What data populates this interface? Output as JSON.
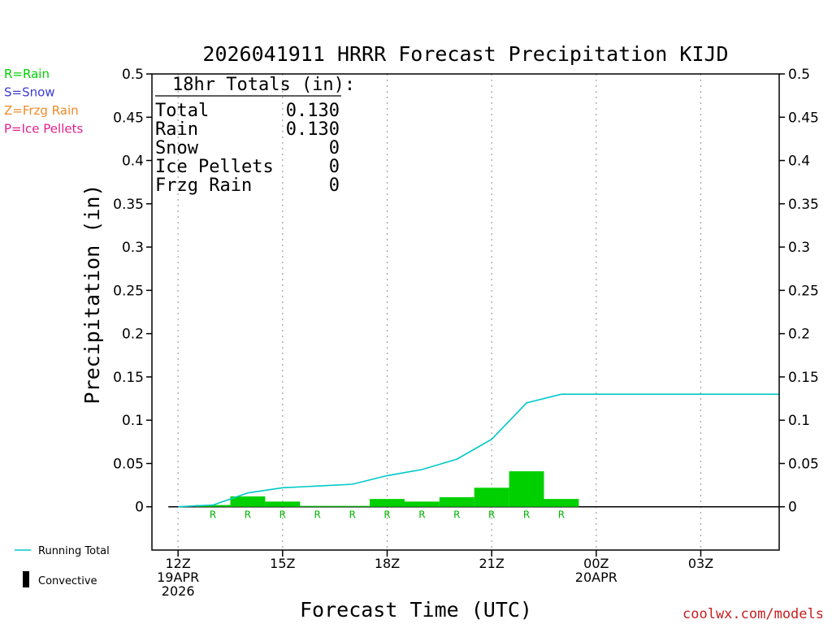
{
  "chart_data": {
    "type": "bar",
    "title": "2026041911 HRRR Forecast Precipitation KIJD",
    "xlabel": "Forecast Time (UTC)",
    "ylabel": "Precipitation (in)",
    "ylim": [
      -0.05,
      0.5
    ],
    "yticks": [
      0,
      0.05,
      0.1,
      0.15,
      0.2,
      0.25,
      0.3,
      0.35,
      0.4,
      0.45,
      0.5
    ],
    "ytick_labels": [
      "0",
      "0.05",
      "0.1",
      "0.15",
      "0.2",
      "0.25",
      "0.3",
      "0.35",
      "0.4",
      "0.45",
      "0.5"
    ],
    "xlim_hours": [
      11.25,
      29.25
    ],
    "xticks": [
      {
        "hour": 12,
        "lines": [
          "12Z",
          "19APR",
          "2026"
        ]
      },
      {
        "hour": 15,
        "lines": [
          "15Z"
        ]
      },
      {
        "hour": 18,
        "lines": [
          "18Z"
        ]
      },
      {
        "hour": 21,
        "lines": [
          "21Z"
        ]
      },
      {
        "hour": 24,
        "lines": [
          "00Z",
          "20APR"
        ]
      },
      {
        "hour": 27,
        "lines": [
          "03Z"
        ]
      }
    ],
    "grid_x": true,
    "hours": [
      13,
      14,
      15,
      16,
      17,
      18,
      19,
      20,
      21,
      22,
      23,
      24,
      25,
      26,
      27,
      28,
      29
    ],
    "series": [
      {
        "name": "Rain",
        "color": "#00d000",
        "values": [
          0.002,
          0.012,
          0.006,
          0.001,
          0.001,
          0.009,
          0.006,
          0.011,
          0.022,
          0.041,
          0.009,
          0,
          0,
          0,
          0,
          0,
          0
        ]
      },
      {
        "name": "Convective",
        "color": "#000000",
        "values": [
          0,
          0,
          0,
          0,
          0,
          0,
          0,
          0,
          0,
          0,
          0,
          0,
          0,
          0,
          0,
          0,
          0
        ]
      }
    ],
    "running_total": {
      "name": "Running Total",
      "color": "#00c8c8",
      "x": [
        12,
        13,
        14,
        15,
        16,
        17,
        18,
        19,
        20,
        21,
        22,
        23,
        24,
        25,
        26,
        27,
        28,
        29.25
      ],
      "values": [
        0,
        0.002,
        0.016,
        0.022,
        0.024,
        0.026,
        0.036,
        0.043,
        0.055,
        0.078,
        0.12,
        0.13,
        0.13,
        0.13,
        0.13,
        0.13,
        0.13,
        0.13
      ]
    },
    "ptype_labels": {
      "text": "R",
      "color": "#00b400",
      "hours": [
        13,
        14,
        15,
        16,
        17,
        18,
        19,
        20,
        21,
        22,
        23
      ]
    },
    "totals_box": {
      "header": "18hr Totals (in):",
      "rows": [
        {
          "label": "Total",
          "value": "0.130"
        },
        {
          "label": "Rain",
          "value": "0.130"
        },
        {
          "label": "Snow",
          "value": "0"
        },
        {
          "label": "Ice Pellets",
          "value": "0"
        },
        {
          "label": "Frzg Rain",
          "value": "0"
        }
      ]
    },
    "type_legend": [
      {
        "text": "R=Rain",
        "color": "#00d000"
      },
      {
        "text": "S=Snow",
        "color": "#3c3cd2"
      },
      {
        "text": "Z=Frzg Rain",
        "color": "#ee8a2a"
      },
      {
        "text": "P=Ice Pellets",
        "color": "#e0208c"
      }
    ],
    "bottom_legend": {
      "running_total": "Running Total",
      "convective": "Convective"
    }
  },
  "credit": {
    "text": "coolwx.com/models",
    "color": "#c81e1e"
  }
}
